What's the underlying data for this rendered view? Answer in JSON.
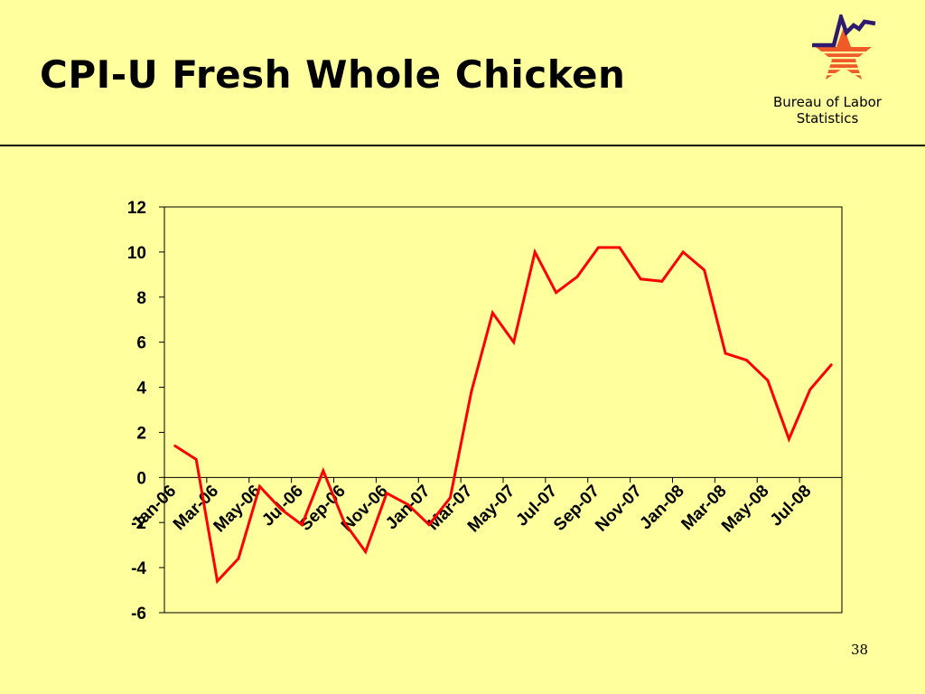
{
  "slide": {
    "title": "CPI-U Fresh Whole Chicken",
    "page_number": "38"
  },
  "logo": {
    "line1": "Bureau of Labor",
    "line2": "Statistics",
    "colors": {
      "star": "#F05A28",
      "line": "#2E1A6E"
    }
  },
  "chart_data": {
    "type": "line",
    "title": "",
    "xlabel": "",
    "ylabel": "",
    "ylim": [
      -6,
      12
    ],
    "yticks": [
      12,
      10,
      8,
      6,
      4,
      2,
      0,
      -2,
      -4,
      -6
    ],
    "x_tick_labels": [
      "Jan-06",
      "Mar-06",
      "May-06",
      "Jul-06",
      "Sep-06",
      "Nov-06",
      "Jan-07",
      "Mar-07",
      "May-07",
      "Jul-07",
      "Sep-07",
      "Nov-07",
      "Jan-08",
      "Mar-08",
      "May-08",
      "Jul-08"
    ],
    "x": [
      "Jan-06",
      "Feb-06",
      "Mar-06",
      "Apr-06",
      "May-06",
      "Jun-06",
      "Jul-06",
      "Aug-06",
      "Sep-06",
      "Oct-06",
      "Nov-06",
      "Dec-06",
      "Jan-07",
      "Feb-07",
      "Mar-07",
      "Apr-07",
      "May-07",
      "Jun-07",
      "Jul-07",
      "Aug-07",
      "Sep-07",
      "Oct-07",
      "Nov-07",
      "Dec-07",
      "Jan-08",
      "Feb-08",
      "Mar-08",
      "Apr-08",
      "May-08",
      "Jun-08",
      "Jul-08",
      "Aug-08"
    ],
    "series": [
      {
        "color": "#FF0000",
        "values": [
          1.4,
          0.8,
          -4.6,
          -3.6,
          -0.4,
          -1.4,
          -2.1,
          0.3,
          -2.0,
          -3.3,
          -0.7,
          -1.2,
          -2.1,
          -0.9,
          3.8,
          7.3,
          6.0,
          10.0,
          8.2,
          8.9,
          10.2,
          10.2,
          8.8,
          8.7,
          10.0,
          9.2,
          5.5,
          5.2,
          4.3,
          1.7,
          3.9,
          5.0
        ]
      }
    ],
    "grid": false,
    "legend": "none"
  }
}
